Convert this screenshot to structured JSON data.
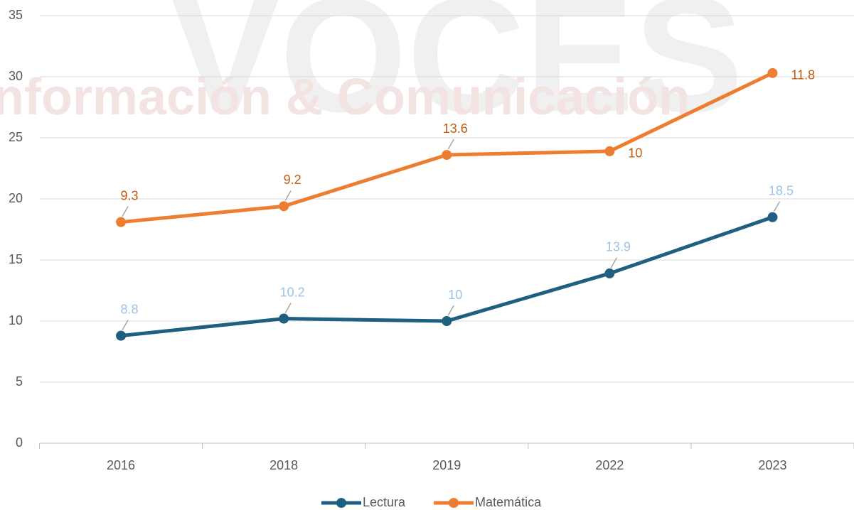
{
  "chart_data": {
    "type": "line",
    "stacked": true,
    "watermark": [
      "VOCES",
      "Información & Comunicación"
    ],
    "categories": [
      "2016",
      "2018",
      "2019",
      "2022",
      "2023"
    ],
    "series": [
      {
        "name": "Lectura",
        "color": "#1f5f7f",
        "label_color": "#9dc3e6",
        "values": [
          8.8,
          10.2,
          10,
          13.9,
          18.5
        ]
      },
      {
        "name": "Matemática",
        "color": "#ed7d31",
        "label_color": "#c55a11",
        "values": [
          9.3,
          9.2,
          13.6,
          10,
          11.8
        ]
      }
    ],
    "ylim": [
      0,
      35
    ],
    "yticks": [
      0,
      5,
      10,
      15,
      20,
      25,
      30,
      35
    ],
    "grid": true,
    "legend": "bottom"
  }
}
